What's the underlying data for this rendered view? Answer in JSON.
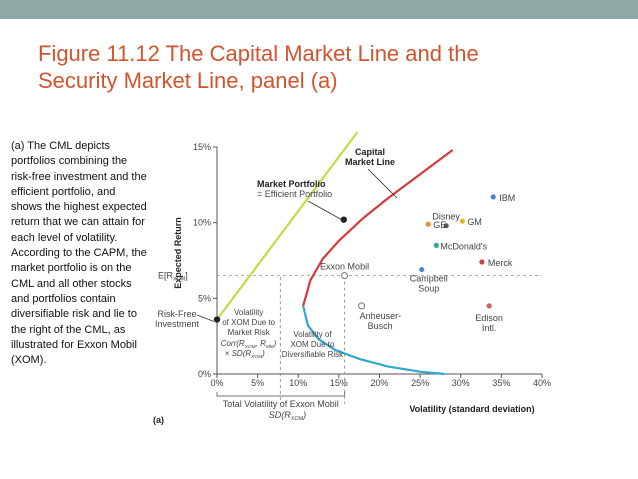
{
  "slide": {
    "title_line1": "Figure 11.12  The Capital Market Line and the",
    "title_line2": "Security Market Line, panel (a)",
    "description": "(a) The CML depicts portfolios combining the risk-free investment and the efficient portfolio, and shows the highest expected return that we can attain for each level of volatility. According to the CAPM, the market portfolio is on the CML and all other stocks and portfolios contain diversifiable risk and lie to the right of the CML, as illustrated for Exxon Mobil (XOM).",
    "colors": {
      "title": "#d0552e",
      "topbar": "#8fa8a6"
    }
  },
  "chart_data": {
    "type": "line",
    "panel_label": "(a)",
    "xlabel": "Volatility (standard deviation)",
    "ylabel": "Expected Return",
    "xlim": [
      0,
      40
    ],
    "ylim": [
      0,
      15
    ],
    "x_ticks": [
      "0%",
      "5%",
      "10%",
      "15%",
      "20%",
      "25%",
      "30%",
      "35%",
      "40%"
    ],
    "y_ticks": [
      "0%",
      "5%",
      "10%",
      "15%"
    ],
    "e_r_label": "E[R",
    "e_r_sub": "XOM",
    "e_r_close": "]",
    "series": [
      {
        "name": "Capital Market Line",
        "color": "#c8d84a",
        "x": [
          0,
          17.3
        ],
        "y": [
          3.6,
          16
        ]
      },
      {
        "name": "",
        "color": "#d43a3a",
        "x": [
          10.6,
          11.5,
          13,
          15,
          18,
          21,
          25,
          29
        ],
        "y": [
          4.5,
          6.2,
          7.6,
          8.8,
          10.3,
          11.6,
          13.2,
          14.8
        ]
      },
      {
        "name": "",
        "color": "#2fa8d0",
        "x": [
          10.6,
          11.2,
          12.5,
          14.5,
          17.5,
          21,
          25,
          28
        ],
        "y": [
          4.5,
          3.2,
          2.3,
          1.6,
          1.0,
          0.5,
          0.15,
          0
        ]
      }
    ],
    "stocks": [
      {
        "name": "IBM",
        "x": 34,
        "y": 11.7,
        "color": "#4a7fd0"
      },
      {
        "name": "GE",
        "x": 26,
        "y": 9.9,
        "color": "#f08a3a"
      },
      {
        "name": "Disney",
        "x": 28.2,
        "y": 9.8,
        "color": "#555555"
      },
      {
        "name": "GM",
        "x": 30.2,
        "y": 10.1,
        "color": "#e0b820"
      },
      {
        "name": "McDonald's",
        "x": 27,
        "y": 8.5,
        "color": "#2fa8a0"
      },
      {
        "name": "Merck",
        "x": 32.6,
        "y": 7.4,
        "color": "#d04040"
      },
      {
        "name": "Campbell Soup",
        "x": 25.2,
        "y": 6.9,
        "color": "#4a8fd0"
      },
      {
        "name": "Anheuser-Busch",
        "x": 17.8,
        "y": 4.5,
        "color": "#888888"
      },
      {
        "name": "Edison Intl.",
        "x": 33.5,
        "y": 4.5,
        "color": "#d06060"
      },
      {
        "name": "Exxon Mobil",
        "x": 15.7,
        "y": 6.5,
        "color": "#999999"
      }
    ],
    "market_portfolio": {
      "x": 15.6,
      "y": 10.2
    },
    "risk_free": {
      "x": 0,
      "y": 3.6
    },
    "annotations": {
      "cml_line1": "Capital",
      "cml_line2": "Market Line",
      "mp_line1": "Market Portfolio",
      "mp_line2": "= Efficient Portfolio",
      "rf_line1": "Risk-Free",
      "rf_line2": "Investment",
      "vol1_line1": "Volatility",
      "vol1_line2": "of XOM Due to",
      "vol1_line3": "Market Risk",
      "vol1_line4": "Corr(R",
      "vol1_line5": "× SD(R",
      "vol2_line1": "Volatility of",
      "vol2_line2": "XOM Due to",
      "vol2_line3": "Diversifiable Risk",
      "total_line1": "Total Volatility of Exxon Mobil",
      "total_line2": "SD(R",
      "sub_xom": "XOM",
      "sub_mkt": "Mkt",
      "close_paren": ")",
      "close_paren_comma": ",",
      "rmkt": "R",
      "close_brackets": "))"
    },
    "xom_market_vol": 7.8,
    "xom_total_vol": 15.7
  }
}
